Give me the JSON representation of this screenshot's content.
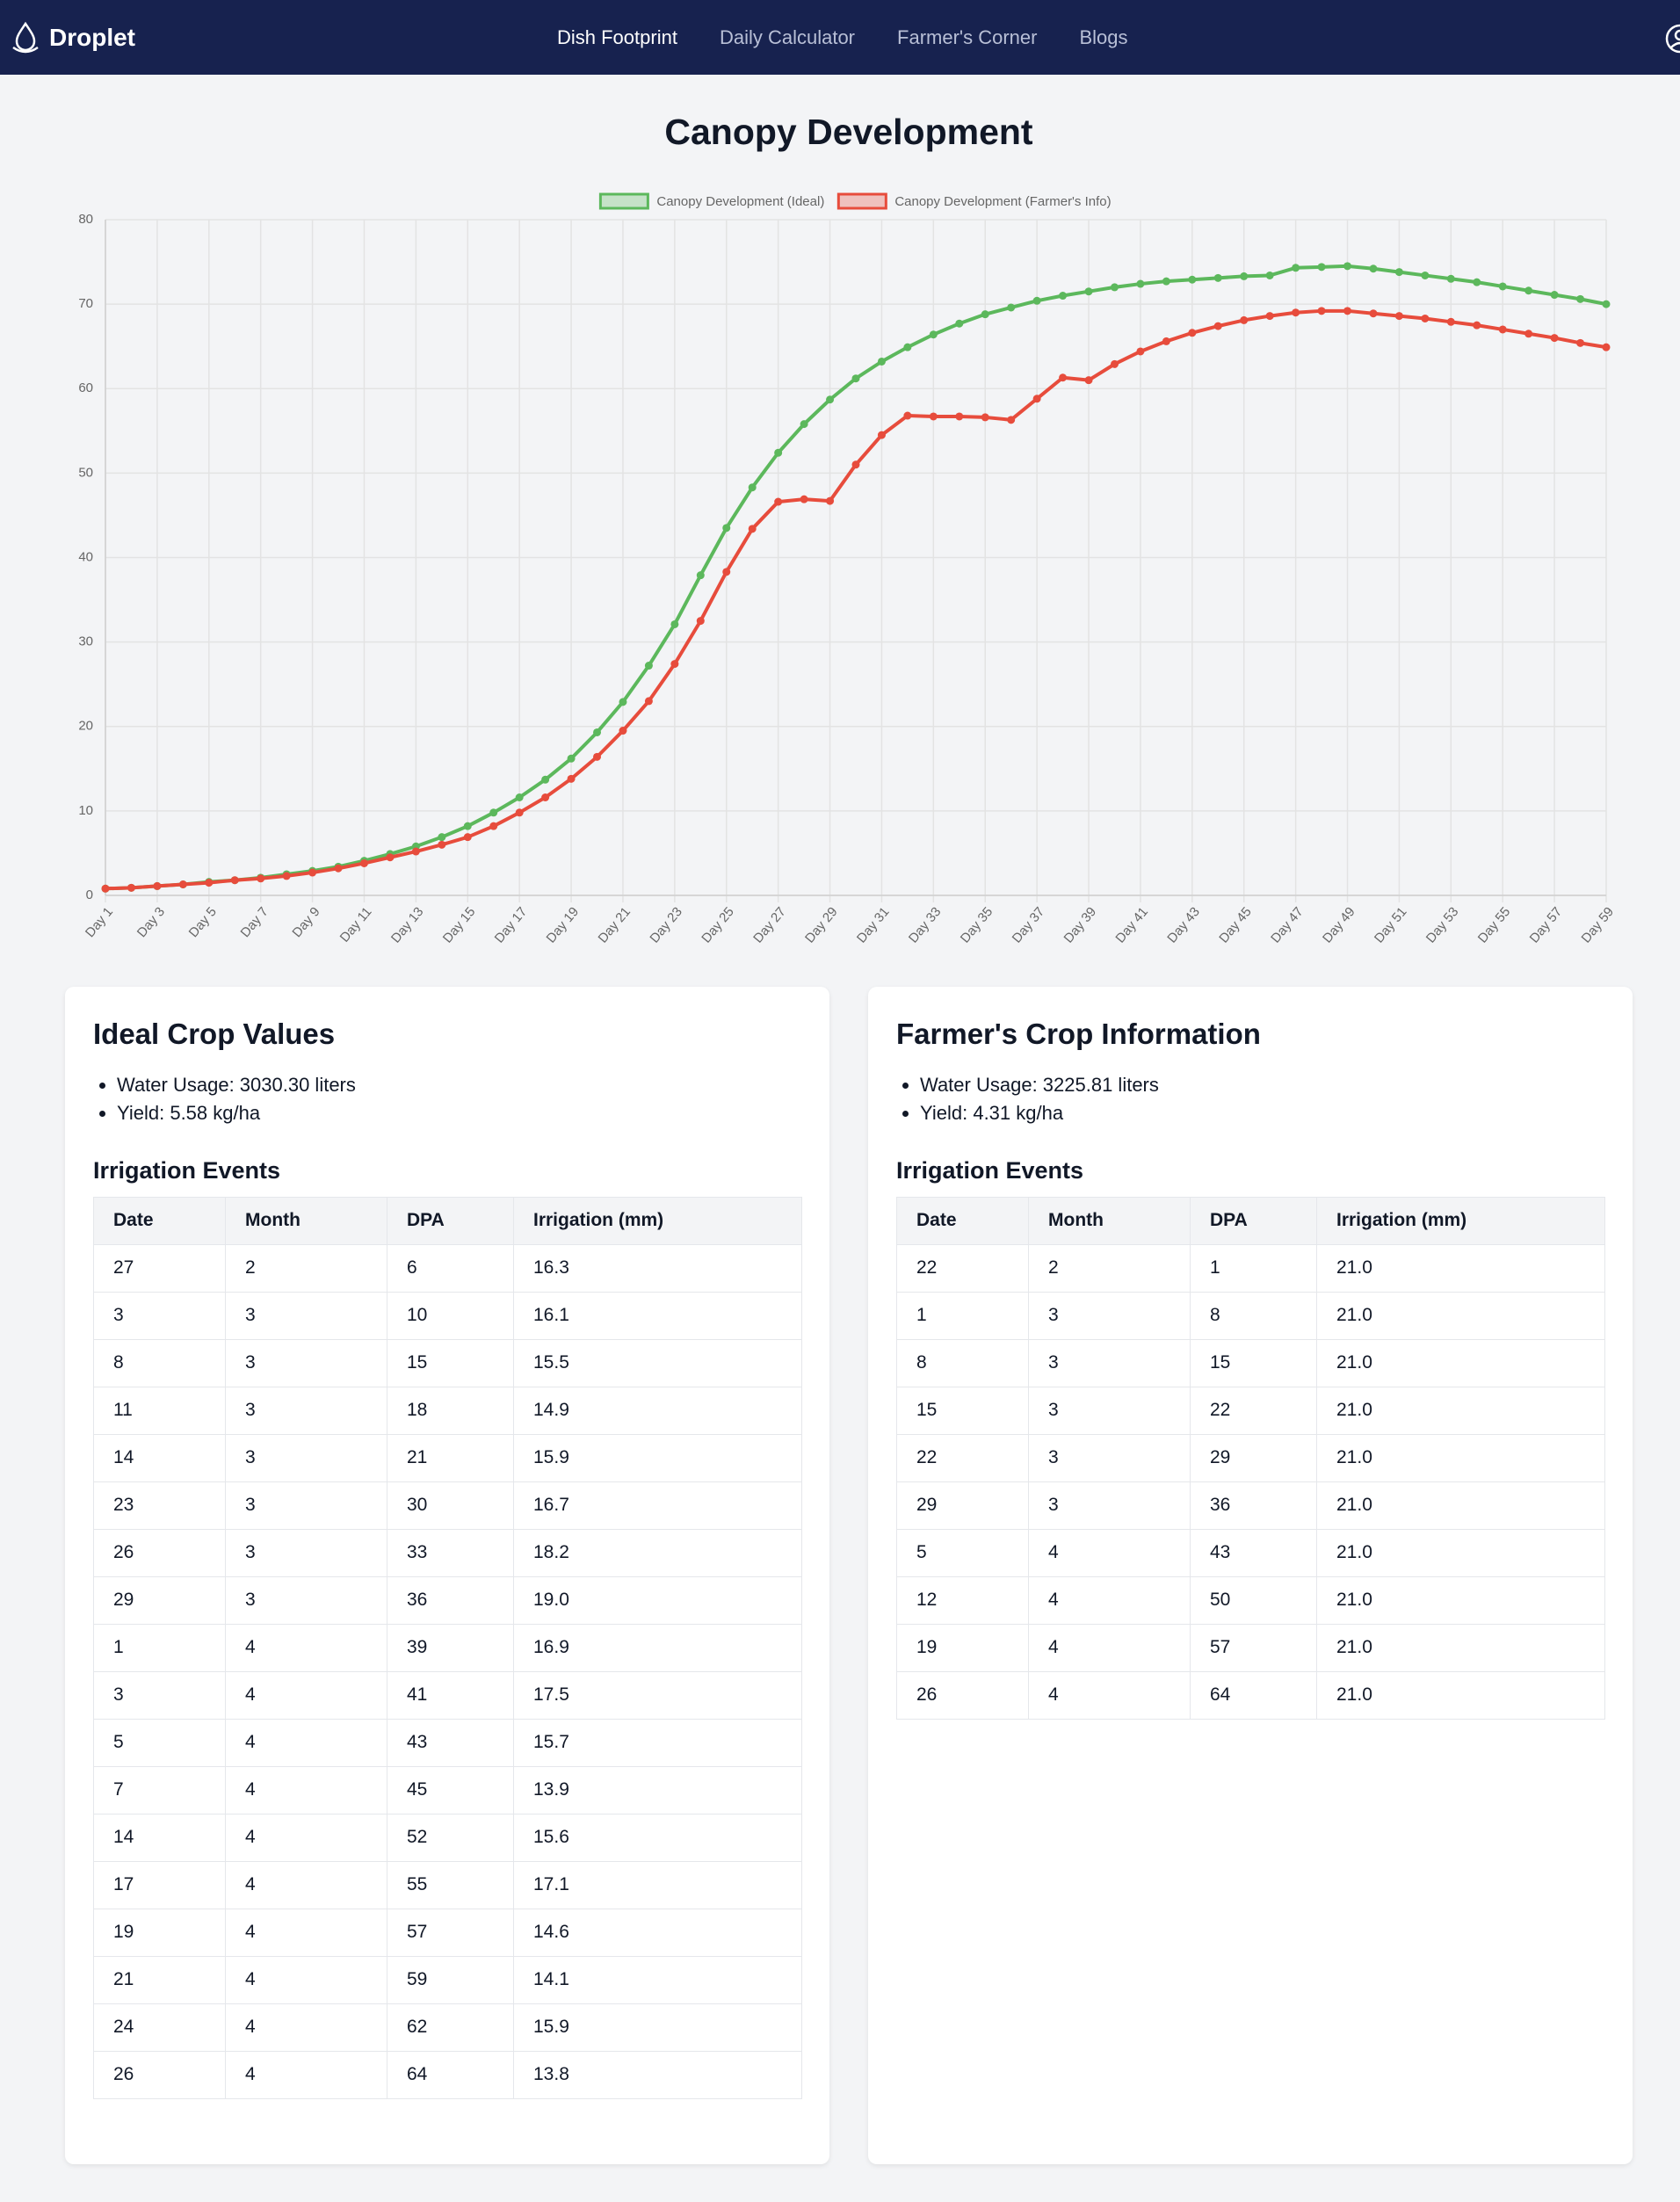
{
  "nav": {
    "brand": "Droplet",
    "links": [
      "Dish Footprint",
      "Daily Calculator",
      "Farmer's Corner",
      "Blogs"
    ]
  },
  "chart_data": {
    "type": "line",
    "title": "Canopy Development",
    "categories": [
      "Day 1",
      null,
      "Day 3",
      null,
      "Day 5",
      null,
      "Day 7",
      null,
      "Day 9",
      null,
      "Day 11",
      null,
      "Day 13",
      null,
      "Day 15",
      null,
      "Day 17",
      null,
      "Day 19",
      null,
      "Day 21",
      null,
      "Day 23",
      null,
      "Day 25",
      null,
      "Day 27",
      null,
      "Day 29",
      null,
      "Day 31",
      null,
      "Day 33",
      null,
      "Day 35",
      null,
      "Day 37",
      null,
      "Day 39",
      null,
      "Day 41",
      null,
      "Day 43",
      null,
      "Day 45",
      null,
      "Day 47",
      null,
      "Day 49",
      null,
      "Day 51",
      null,
      "Day 53",
      null,
      "Day 55",
      null,
      "Day 57",
      null,
      "Day 59"
    ],
    "series": [
      {
        "name": "Canopy Development (Ideal)",
        "color": "#5cb85c",
        "values": [
          0.8,
          0.9,
          1.1,
          1.3,
          1.6,
          1.8,
          2.1,
          2.5,
          2.9,
          3.4,
          4.1,
          4.9,
          5.8,
          6.9,
          8.2,
          9.8,
          11.6,
          13.7,
          16.2,
          19.3,
          22.9,
          27.2,
          32.1,
          37.9,
          43.5,
          48.3,
          52.4,
          55.8,
          58.7,
          61.2,
          63.2,
          64.9,
          66.4,
          67.7,
          68.8,
          69.6,
          70.4,
          71.0,
          71.5,
          72.0,
          72.4,
          72.7,
          72.9,
          73.1,
          73.3,
          73.4,
          74.3,
          74.4,
          74.5,
          74.2,
          73.8,
          73.4,
          73.0,
          72.6,
          72.1,
          71.6,
          71.1,
          70.6,
          70.0
        ]
      },
      {
        "name": "Canopy Development (Farmer's Info)",
        "color": "#e74c3c",
        "values": [
          0.8,
          0.9,
          1.1,
          1.3,
          1.5,
          1.8,
          2.0,
          2.3,
          2.7,
          3.2,
          3.8,
          4.5,
          5.2,
          6.0,
          6.9,
          8.2,
          9.8,
          11.6,
          13.8,
          16.4,
          19.5,
          23.0,
          27.4,
          32.5,
          38.3,
          43.4,
          46.6,
          46.9,
          46.7,
          51.0,
          54.5,
          56.8,
          56.7,
          56.7,
          56.6,
          56.3,
          58.8,
          61.3,
          61.0,
          62.9,
          64.4,
          65.6,
          66.6,
          67.4,
          68.1,
          68.6,
          69.0,
          69.2,
          69.2,
          68.9,
          68.6,
          68.3,
          67.9,
          67.5,
          67.0,
          66.5,
          66.0,
          65.4,
          64.9
        ]
      }
    ],
    "ylim": [
      0,
      80
    ],
    "yticks": [
      0,
      10,
      20,
      30,
      40,
      50,
      60,
      70,
      80
    ],
    "grid": true,
    "legend": "top"
  },
  "cards": [
    {
      "title": "Ideal Crop Values",
      "items": [
        "Water Usage: 3030.30 liters",
        "Yield: 5.58 kg/ha"
      ],
      "subtitle": "Irrigation Events",
      "table": {
        "header": [
          "Date",
          "Month",
          "DPA",
          "Irrigation (mm)"
        ],
        "rows": [
          [
            "27",
            "2",
            "6",
            "16.3"
          ],
          [
            "3",
            "3",
            "10",
            "16.1"
          ],
          [
            "8",
            "3",
            "15",
            "15.5"
          ],
          [
            "11",
            "3",
            "18",
            "14.9"
          ],
          [
            "14",
            "3",
            "21",
            "15.9"
          ],
          [
            "23",
            "3",
            "30",
            "16.7"
          ],
          [
            "26",
            "3",
            "33",
            "18.2"
          ],
          [
            "29",
            "3",
            "36",
            "19.0"
          ],
          [
            "1",
            "4",
            "39",
            "16.9"
          ],
          [
            "3",
            "4",
            "41",
            "17.5"
          ],
          [
            "5",
            "4",
            "43",
            "15.7"
          ],
          [
            "7",
            "4",
            "45",
            "13.9"
          ],
          [
            "14",
            "4",
            "52",
            "15.6"
          ],
          [
            "17",
            "4",
            "55",
            "17.1"
          ],
          [
            "19",
            "4",
            "57",
            "14.6"
          ],
          [
            "21",
            "4",
            "59",
            "14.1"
          ],
          [
            "24",
            "4",
            "62",
            "15.9"
          ],
          [
            "26",
            "4",
            "64",
            "13.8"
          ]
        ]
      }
    },
    {
      "title": "Farmer's Crop Information",
      "items": [
        "Water Usage: 3225.81 liters",
        "Yield: 4.31 kg/ha"
      ],
      "subtitle": "Irrigation Events",
      "table": {
        "header": [
          "Date",
          "Month",
          "DPA",
          "Irrigation (mm)"
        ],
        "rows": [
          [
            "22",
            "2",
            "1",
            "21.0"
          ],
          [
            "1",
            "3",
            "8",
            "21.0"
          ],
          [
            "8",
            "3",
            "15",
            "21.0"
          ],
          [
            "15",
            "3",
            "22",
            "21.0"
          ],
          [
            "22",
            "3",
            "29",
            "21.0"
          ],
          [
            "29",
            "3",
            "36",
            "21.0"
          ],
          [
            "5",
            "4",
            "43",
            "21.0"
          ],
          [
            "12",
            "4",
            "50",
            "21.0"
          ],
          [
            "19",
            "4",
            "57",
            "21.0"
          ],
          [
            "26",
            "4",
            "64",
            "21.0"
          ]
        ]
      }
    }
  ]
}
